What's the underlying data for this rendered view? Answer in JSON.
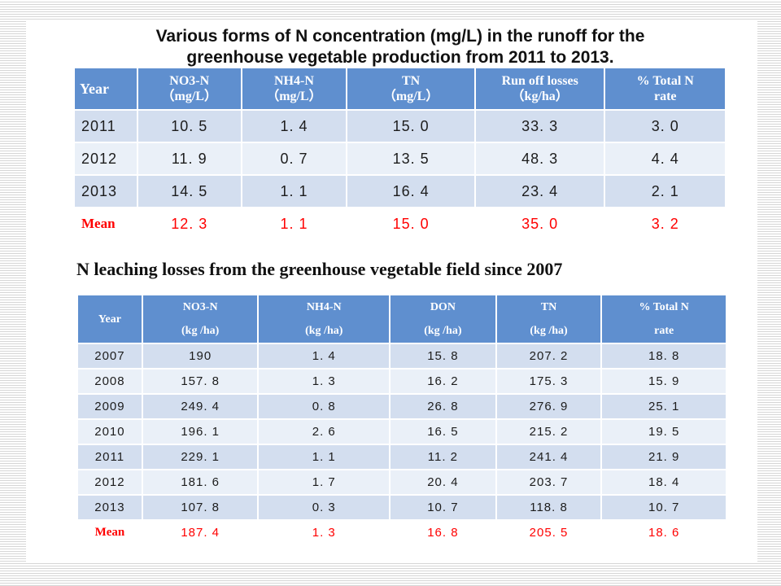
{
  "table1": {
    "title_line1": "Various forms of N concentration (mg/L) in the runoff for the",
    "title_line2": "greenhouse vegetable production from 2011 to 2013.",
    "headers": [
      {
        "line1": "Year",
        "line2": ""
      },
      {
        "line1": "NO3-N",
        "line2": "（mg/L）"
      },
      {
        "line1": "NH4-N",
        "line2": "（mg/L）"
      },
      {
        "line1": "TN",
        "line2": "（mg/L）"
      },
      {
        "line1": "Run off losses",
        "line2": "（kg/ha）"
      },
      {
        "line1": "% Total N",
        "line2": "rate"
      }
    ],
    "rows": [
      [
        "2011",
        "10. 5",
        "1. 4",
        "15. 0",
        "33. 3",
        "3. 0"
      ],
      [
        "2012",
        "11. 9",
        "0. 7",
        "13. 5",
        "48. 3",
        "4. 4"
      ],
      [
        "2013",
        "14. 5",
        "1. 1",
        "16. 4",
        "23. 4",
        "2. 1"
      ]
    ],
    "mean": [
      "Mean",
      "12. 3",
      "1. 1",
      "15. 0",
      "35. 0",
      "3. 2"
    ]
  },
  "table2": {
    "title": "N leaching losses from the greenhouse vegetable field since 2007",
    "headers": [
      {
        "line1": "Year",
        "line2": ""
      },
      {
        "line1": "NO3-N",
        "line2": "(kg /ha)"
      },
      {
        "line1": "NH4-N",
        "line2": "(kg /ha)"
      },
      {
        "line1": "DON",
        "line2": "(kg /ha)"
      },
      {
        "line1": "TN",
        "line2": "(kg /ha)"
      },
      {
        "line1": "% Total N",
        "line2": "rate"
      }
    ],
    "rows": [
      [
        "2007",
        "190",
        "1. 4",
        "15. 8",
        "207. 2",
        "18. 8"
      ],
      [
        "2008",
        "157. 8",
        "1. 3",
        "16. 2",
        "175. 3",
        "15. 9"
      ],
      [
        "2009",
        "249. 4",
        "0. 8",
        "26. 8",
        "276. 9",
        "25. 1"
      ],
      [
        "2010",
        "196. 1",
        "2. 6",
        "16. 5",
        "215. 2",
        "19. 5"
      ],
      [
        "2011",
        "229. 1",
        "1. 1",
        "11. 2",
        "241. 4",
        "21. 9"
      ],
      [
        "2012",
        "181. 6",
        "1. 7",
        "20. 4",
        "203. 7",
        "18. 4"
      ],
      [
        "2013",
        "107. 8",
        "0. 3",
        "10. 7",
        "118. 8",
        "10. 7"
      ]
    ],
    "mean": [
      "Mean",
      "187. 4",
      "1. 3",
      "16. 8",
      "205. 5",
      "18. 6"
    ]
  },
  "colors": {
    "header_blue": "#5f8fcf",
    "row_dark": "#d3deef",
    "row_light": "#eaf0f8",
    "mean_red": "#ff0000"
  }
}
